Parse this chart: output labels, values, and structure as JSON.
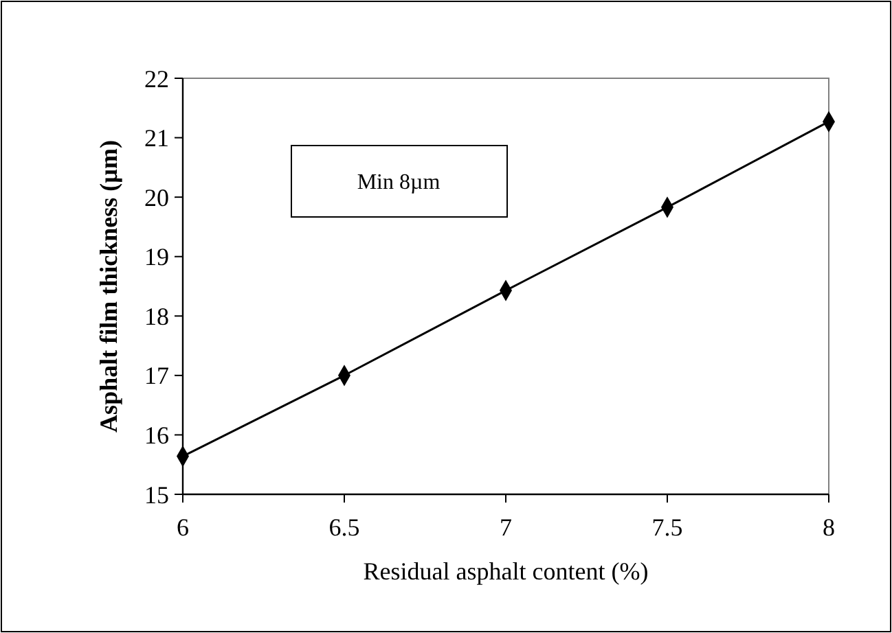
{
  "chart_data": {
    "type": "line",
    "xlabel": "Residual asphalt content (%)",
    "ylabel": "Asphalt film thickness (µm)",
    "x": [
      6,
      6.5,
      7,
      7.5,
      8
    ],
    "series": [
      {
        "color": "#000000",
        "values": [
          15.64,
          17.0,
          18.43,
          19.83,
          21.27
        ]
      }
    ],
    "xlim": [
      6,
      8
    ],
    "xticks": [
      6,
      6.5,
      7,
      7.5,
      8
    ],
    "ylim": [
      15,
      22
    ],
    "yticks": [
      15,
      16,
      17,
      18,
      19,
      20,
      21,
      22
    ],
    "marker": "diamond",
    "line_style": "solid",
    "grid": false,
    "annotations": [
      "Min 8µm"
    ]
  }
}
